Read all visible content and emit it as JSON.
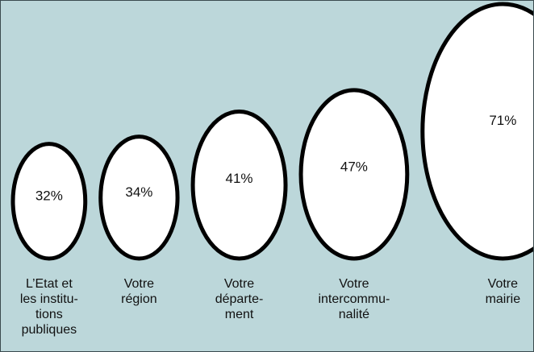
{
  "chart_data": {
    "type": "bubble",
    "categories": [
      "L’Etat et\nles institu-\ntions\npubliques",
      "Votre\nrégion",
      "Votre\ndéparte-\nment",
      "Votre\nintercommu-\nnalité",
      "Votre\nmairie"
    ],
    "values": [
      32,
      34,
      41,
      47,
      71
    ],
    "value_labels": [
      "32%",
      "34%",
      "41%",
      "47%",
      "71%"
    ],
    "color": "#ffffff"
  }
}
